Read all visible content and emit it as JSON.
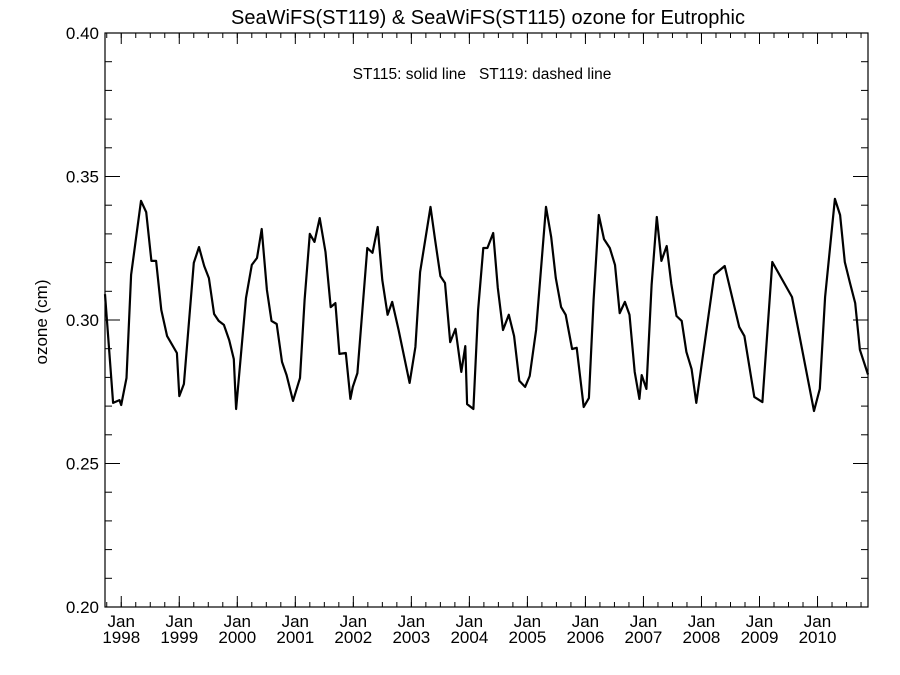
{
  "chart_data": {
    "type": "line",
    "title": "SeaWiFS(ST119) & SeaWiFS(ST115)  ozone for Eutrophic",
    "annotation": "ST115: solid line   ST119: dashed line",
    "xlabel": "",
    "ylabel": "ozone (cm)",
    "xlim": [
      1997.72,
      2010.87
    ],
    "ylim": [
      0.2,
      0.4
    ],
    "grid": false,
    "y_ticks": [
      {
        "value": 0.2,
        "label": "0.20"
      },
      {
        "value": 0.25,
        "label": "0.25"
      },
      {
        "value": 0.3,
        "label": "0.30"
      },
      {
        "value": 0.35,
        "label": "0.35"
      },
      {
        "value": 0.4,
        "label": "0.40"
      }
    ],
    "y_minor_step": 0.01,
    "x_ticks": [
      {
        "value": 1998,
        "month": "Jan",
        "year": "1998"
      },
      {
        "value": 1999,
        "month": "Jan",
        "year": "1999"
      },
      {
        "value": 2000,
        "month": "Jan",
        "year": "2000"
      },
      {
        "value": 2001,
        "month": "Jan",
        "year": "2001"
      },
      {
        "value": 2002,
        "month": "Jan",
        "year": "2002"
      },
      {
        "value": 2003,
        "month": "Jan",
        "year": "2003"
      },
      {
        "value": 2004,
        "month": "Jan",
        "year": "2004"
      },
      {
        "value": 2005,
        "month": "Jan",
        "year": "2005"
      },
      {
        "value": 2006,
        "month": "Jan",
        "year": "2006"
      },
      {
        "value": 2007,
        "month": "Jan",
        "year": "2007"
      },
      {
        "value": 2008,
        "month": "Jan",
        "year": "2008"
      },
      {
        "value": 2009,
        "month": "Jan",
        "year": "2009"
      },
      {
        "value": 2010,
        "month": "Jan",
        "year": "2010"
      }
    ],
    "x_minor_step_years": 0.25,
    "series": [
      {
        "name": "ST115",
        "style": "solid",
        "color": "#000000",
        "points": [
          [
            1997.72,
            0.309
          ],
          [
            1997.86,
            0.2711
          ],
          [
            1997.97,
            0.2721
          ],
          [
            1998.0,
            0.2704
          ],
          [
            1998.09,
            0.2798
          ],
          [
            1998.17,
            0.3157
          ],
          [
            1998.34,
            0.3415
          ],
          [
            1998.43,
            0.3376
          ],
          [
            1998.52,
            0.3206
          ],
          [
            1998.6,
            0.3206
          ],
          [
            1998.69,
            0.3035
          ],
          [
            1998.79,
            0.2944
          ],
          [
            1998.96,
            0.2885
          ],
          [
            1999.0,
            0.2735
          ],
          [
            1999.08,
            0.2777
          ],
          [
            1999.25,
            0.3199
          ],
          [
            1999.34,
            0.3254
          ],
          [
            1999.43,
            0.3188
          ],
          [
            1999.51,
            0.3146
          ],
          [
            1999.6,
            0.3021
          ],
          [
            1999.68,
            0.2997
          ],
          [
            1999.77,
            0.2983
          ],
          [
            1999.86,
            0.293
          ],
          [
            1999.94,
            0.2864
          ],
          [
            1999.98,
            0.269
          ],
          [
            2000.15,
            0.3077
          ],
          [
            2000.25,
            0.3192
          ],
          [
            2000.34,
            0.3216
          ],
          [
            2000.42,
            0.3317
          ],
          [
            2000.51,
            0.3105
          ],
          [
            2000.59,
            0.2997
          ],
          [
            2000.68,
            0.2986
          ],
          [
            2000.77,
            0.2854
          ],
          [
            2000.85,
            0.2808
          ],
          [
            2000.96,
            0.2718
          ],
          [
            2001.08,
            0.2798
          ],
          [
            2001.16,
            0.307
          ],
          [
            2001.25,
            0.33
          ],
          [
            2001.33,
            0.3272
          ],
          [
            2001.42,
            0.3355
          ],
          [
            2001.52,
            0.3237
          ],
          [
            2001.61,
            0.3045
          ],
          [
            2001.69,
            0.3059
          ],
          [
            2001.76,
            0.2882
          ],
          [
            2001.87,
            0.2885
          ],
          [
            2001.95,
            0.2725
          ],
          [
            2001.99,
            0.2767
          ],
          [
            2002.07,
            0.2815
          ],
          [
            2002.24,
            0.3251
          ],
          [
            2002.33,
            0.3234
          ],
          [
            2002.42,
            0.3324
          ],
          [
            2002.5,
            0.3139
          ],
          [
            2002.59,
            0.3018
          ],
          [
            2002.67,
            0.3063
          ],
          [
            2002.78,
            0.2965
          ],
          [
            2002.97,
            0.2781
          ],
          [
            2003.07,
            0.2906
          ],
          [
            2003.15,
            0.3167
          ],
          [
            2003.33,
            0.3394
          ],
          [
            2003.41,
            0.3279
          ],
          [
            2003.5,
            0.3153
          ],
          [
            2003.58,
            0.3129
          ],
          [
            2003.67,
            0.2923
          ],
          [
            2003.76,
            0.2969
          ],
          [
            2003.86,
            0.2819
          ],
          [
            2003.93,
            0.2909
          ],
          [
            2003.96,
            0.2707
          ],
          [
            2004.07,
            0.269
          ],
          [
            2004.15,
            0.3035
          ],
          [
            2004.24,
            0.3251
          ],
          [
            2004.31,
            0.3251
          ],
          [
            2004.41,
            0.3303
          ],
          [
            2004.49,
            0.3112
          ],
          [
            2004.58,
            0.2965
          ],
          [
            2004.68,
            0.3018
          ],
          [
            2004.77,
            0.2944
          ],
          [
            2004.86,
            0.2788
          ],
          [
            2004.96,
            0.2767
          ],
          [
            2005.04,
            0.2805
          ],
          [
            2005.15,
            0.2965
          ],
          [
            2005.32,
            0.3394
          ],
          [
            2005.41,
            0.3289
          ],
          [
            2005.49,
            0.3146
          ],
          [
            2005.58,
            0.3045
          ],
          [
            2005.66,
            0.3018
          ],
          [
            2005.77,
            0.2899
          ],
          [
            2005.85,
            0.2903
          ],
          [
            2005.97,
            0.2697
          ],
          [
            2006.06,
            0.2728
          ],
          [
            2006.14,
            0.307
          ],
          [
            2006.23,
            0.3366
          ],
          [
            2006.32,
            0.3282
          ],
          [
            2006.42,
            0.3251
          ],
          [
            2006.51,
            0.3192
          ],
          [
            2006.59,
            0.3024
          ],
          [
            2006.68,
            0.3063
          ],
          [
            2006.76,
            0.3018
          ],
          [
            2006.85,
            0.2819
          ],
          [
            2006.93,
            0.2725
          ],
          [
            2006.97,
            0.2808
          ],
          [
            2007.05,
            0.276
          ],
          [
            2007.14,
            0.3122
          ],
          [
            2007.23,
            0.3359
          ],
          [
            2007.31,
            0.3206
          ],
          [
            2007.4,
            0.3258
          ],
          [
            2007.48,
            0.3126
          ],
          [
            2007.57,
            0.3014
          ],
          [
            2007.66,
            0.2997
          ],
          [
            2007.74,
            0.2889
          ],
          [
            2007.83,
            0.2829
          ],
          [
            2007.91,
            0.2711
          ],
          [
            2008.22,
            0.3157
          ],
          [
            2008.4,
            0.3188
          ],
          [
            2008.65,
            0.2976
          ],
          [
            2008.74,
            0.2944
          ],
          [
            2008.91,
            0.2732
          ],
          [
            2009.05,
            0.2714
          ],
          [
            2009.22,
            0.3202
          ],
          [
            2009.56,
            0.308
          ],
          [
            2009.94,
            0.2683
          ],
          [
            2010.04,
            0.276
          ],
          [
            2010.13,
            0.308
          ],
          [
            2010.3,
            0.3422
          ],
          [
            2010.39,
            0.3366
          ],
          [
            2010.47,
            0.3202
          ],
          [
            2010.56,
            0.3129
          ],
          [
            2010.65,
            0.3059
          ],
          [
            2010.73,
            0.2896
          ],
          [
            2010.87,
            0.281
          ]
        ]
      }
    ]
  }
}
